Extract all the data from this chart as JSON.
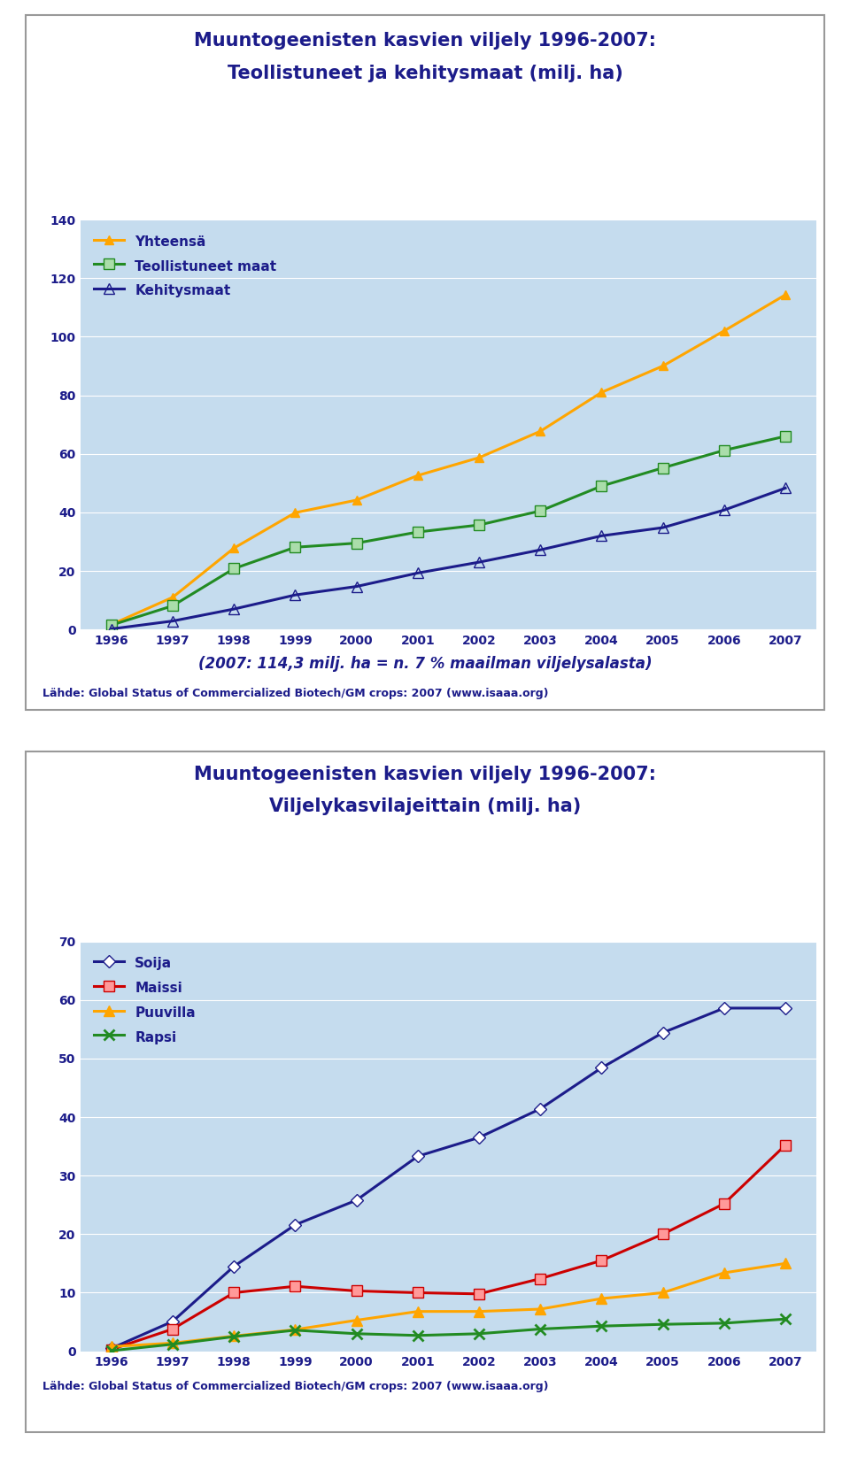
{
  "chart1": {
    "title_line1": "Muuntogeenisten kasvien viljely 1996-2007:",
    "title_line2": "Teollistuneet ja kehitysmaat (milj. ha)",
    "years": [
      1996,
      1997,
      1998,
      1999,
      2000,
      2001,
      2002,
      2003,
      2004,
      2005,
      2006,
      2007
    ],
    "yhteensa": [
      1.7,
      11.0,
      27.8,
      39.9,
      44.2,
      52.6,
      58.7,
      67.7,
      81.0,
      90.0,
      102.0,
      114.3
    ],
    "teollistuneet": [
      1.5,
      8.1,
      20.8,
      28.1,
      29.5,
      33.3,
      35.7,
      40.5,
      49.0,
      55.2,
      61.2,
      66.0
    ],
    "kehitysmaat": [
      0.2,
      2.9,
      7.0,
      11.8,
      14.7,
      19.3,
      23.0,
      27.2,
      32.0,
      34.8,
      40.8,
      48.3
    ],
    "yhteensa_color": "#FFA500",
    "teollistuneet_color": "#228B22",
    "kehitysmaat_color": "#1C1C8A",
    "ylim": [
      0,
      140
    ],
    "yticks": [
      0,
      20,
      40,
      60,
      80,
      100,
      120,
      140
    ],
    "subtitle": "(2007: 114,3 milj. ha = n. 7 % maailman viljelysalasta)",
    "source": "Lähde: Global Status of Commercialized Biotech/GM crops: 2007 (www.isaaa.org)",
    "plot_bg": "#C5DCEE"
  },
  "chart2": {
    "title_line1": "Muuntogeenisten kasvien viljely 1996-2007:",
    "title_line2": "Viljelykasvilajeittain (milj. ha)",
    "years": [
      1996,
      1997,
      1998,
      1999,
      2000,
      2001,
      2002,
      2003,
      2004,
      2005,
      2006,
      2007
    ],
    "soija": [
      0.5,
      5.1,
      14.5,
      21.6,
      25.8,
      33.3,
      36.5,
      41.4,
      48.4,
      54.4,
      58.6,
      58.6
    ],
    "maissi": [
      0.3,
      3.8,
      10.0,
      11.1,
      10.3,
      10.0,
      9.8,
      12.4,
      15.5,
      20.0,
      25.2,
      35.2
    ],
    "puuvilla": [
      0.8,
      1.4,
      2.6,
      3.7,
      5.3,
      6.8,
      6.8,
      7.2,
      9.0,
      10.0,
      13.4,
      15.0
    ],
    "rapsi": [
      0.1,
      1.2,
      2.5,
      3.6,
      3.0,
      2.7,
      3.0,
      3.8,
      4.3,
      4.6,
      4.8,
      5.5
    ],
    "soija_color": "#1C1C8A",
    "maissi_color": "#CC0000",
    "puuvilla_color": "#FFA500",
    "rapsi_color": "#228B22",
    "ylim": [
      0,
      70
    ],
    "yticks": [
      0,
      10,
      20,
      30,
      40,
      50,
      60,
      70
    ],
    "source": "Lähde: Global Status of Commercialized Biotech/GM crops: 2007 (www.isaaa.org)",
    "plot_bg": "#C5DCEE"
  },
  "title_color": "#1C1C8A",
  "text_color": "#1C1C8A",
  "outer_bg": "#FFFFFF",
  "panel_border_color": "#999999"
}
